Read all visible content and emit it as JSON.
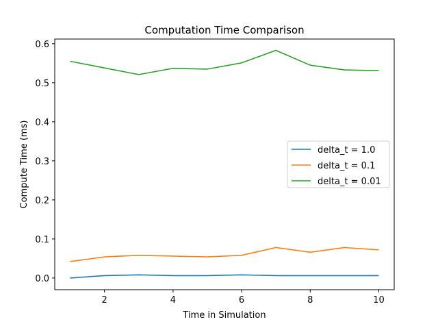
{
  "chart_data": {
    "type": "line",
    "title": "Computation Time Comparison",
    "xlabel": "Time in Simulation",
    "ylabel": "Compute Time (ms)",
    "xlim": [
      0.55,
      10.45
    ],
    "ylim": [
      -0.03,
      0.612
    ],
    "xticks": [
      2,
      4,
      6,
      8,
      10
    ],
    "yticks": [
      0.0,
      0.1,
      0.2,
      0.3,
      0.4,
      0.5,
      0.6
    ],
    "ytick_labels": [
      "0.0",
      "0.1",
      "0.2",
      "0.3",
      "0.4",
      "0.5",
      "0.6"
    ],
    "x": [
      1,
      2,
      3,
      4,
      5,
      6,
      7,
      8,
      9,
      10
    ],
    "series": [
      {
        "name": "delta_t = 1.0",
        "color": "#1f77b4",
        "values": [
          0.0,
          0.006,
          0.008,
          0.006,
          0.006,
          0.008,
          0.006,
          0.006,
          0.006,
          0.006
        ]
      },
      {
        "name": "delta_t = 0.1",
        "color": "#ff7f0e",
        "values": [
          0.042,
          0.054,
          0.058,
          0.056,
          0.054,
          0.058,
          0.078,
          0.066,
          0.078,
          0.072
        ]
      },
      {
        "name": "delta_t = 0.01",
        "color": "#2ca02c",
        "values": [
          0.555,
          0.538,
          0.521,
          0.537,
          0.535,
          0.551,
          0.583,
          0.545,
          0.533,
          0.531
        ]
      }
    ],
    "grid": false,
    "legend_position": "center-right"
  }
}
